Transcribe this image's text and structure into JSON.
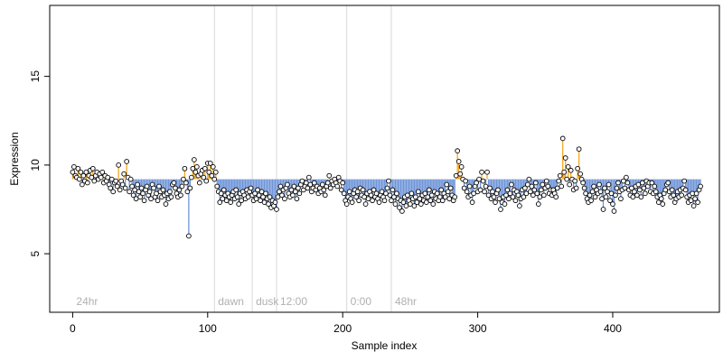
{
  "chart_data": {
    "type": "scatter",
    "xlabel": "Sample index",
    "ylabel": "Expression",
    "xlim": [
      -17,
      479
    ],
    "ylim": [
      1.7,
      19.0
    ],
    "x_ticks": [
      0,
      100,
      200,
      300,
      400
    ],
    "y_ticks": [
      5,
      10,
      15
    ],
    "baseline": 9.2,
    "baseline_x_range": [
      0,
      463
    ],
    "colors": {
      "above": "#f5a623",
      "below": "#6f95d8",
      "vline": "#d8d8d8",
      "point_edge": "#000000",
      "point_fill": "#ffffff"
    },
    "annotations": [
      {
        "label": "24hr",
        "x": 0
      },
      {
        "label": "dawn",
        "x": 105
      },
      {
        "label": "dusk",
        "x": 133
      },
      {
        "label": "12:00",
        "x": 151
      },
      {
        "label": "0:00",
        "x": 203
      },
      {
        "label": "48hr",
        "x": 236
      }
    ],
    "series": [
      {
        "values": [
          9.6,
          9.9,
          9.4,
          9.3,
          9.8,
          9.2,
          9.6,
          8.9,
          9.4,
          9.1,
          9.6,
          9.0,
          9.4,
          9.7,
          9.3,
          9.8,
          9.1,
          9.4,
          9.6,
          9.2,
          9.5,
          9.3,
          9.6,
          9.0,
          9.4,
          9.1,
          9.3,
          8.9,
          8.7,
          9.2,
          8.5,
          9.0,
          9.1,
          8.8,
          10.0,
          8.6,
          9.1,
          8.9,
          9.5,
          8.7,
          10.2,
          9.3,
          8.5,
          9.2,
          8.8,
          8.3,
          8.6,
          8.1,
          8.9,
          8.5,
          8.2,
          8.7,
          8.4,
          8.0,
          8.6,
          8.8,
          8.3,
          8.5,
          8.1,
          8.9,
          8.7,
          8.2,
          8.4,
          8.0,
          8.8,
          8.5,
          8.2,
          8.6,
          8.3,
          7.8,
          8.4,
          8.1,
          8.5,
          8.2,
          8.9,
          9.0,
          8.7,
          8.4,
          8.2,
          8.6,
          8.3,
          8.8,
          9.2,
          9.8,
          9.0,
          8.5,
          6.0,
          8.7,
          9.3,
          9.8,
          10.3,
          9.6,
          9.9,
          9.4,
          9.0,
          9.5,
          9.7,
          9.3,
          9.8,
          9.1,
          10.1,
          9.6,
          10.1,
          9.4,
          9.9,
          9.2,
          9.6,
          8.8,
          8.5,
          7.9,
          8.4,
          8.1,
          8.6,
          8.3,
          8.0,
          8.4,
          8.2,
          7.9,
          8.3,
          8.5,
          8.1,
          8.6,
          8.2,
          7.8,
          8.4,
          8.0,
          8.5,
          8.3,
          8.1,
          8.6,
          8.2,
          8.5,
          8.7,
          8.3,
          8.0,
          8.4,
          8.1,
          8.6,
          8.3,
          8.0,
          8.5,
          8.2,
          7.9,
          8.4,
          8.1,
          7.8,
          8.2,
          7.6,
          8.0,
          7.7,
          7.9,
          7.5,
          8.2,
          8.5,
          8.8,
          8.3,
          8.6,
          8.1,
          8.7,
          8.9,
          8.4,
          8.2,
          8.6,
          8.3,
          8.8,
          8.5,
          8.1,
          8.7,
          8.4,
          8.9,
          9.1,
          8.6,
          8.8,
          9.0,
          8.7,
          9.3,
          8.9,
          8.5,
          8.7,
          9.0,
          8.6,
          8.8,
          8.4,
          8.7,
          8.5,
          8.9,
          8.6,
          8.3,
          8.8,
          9.0,
          9.4,
          8.7,
          9.1,
          8.9,
          9.2,
          9.0,
          8.8,
          9.3,
          9.1,
          8.6,
          9.0,
          8.4,
          8.0,
          7.8,
          8.2,
          8.5,
          8.1,
          7.9,
          8.4,
          8.6,
          8.2,
          8.5,
          8.0,
          8.7,
          8.3,
          8.6,
          8.2,
          7.8,
          8.4,
          8.1,
          8.5,
          8.3,
          8.0,
          8.6,
          8.2,
          8.4,
          8.1,
          7.9,
          8.3,
          8.5,
          8.2,
          8.0,
          8.4,
          8.7,
          9.1,
          8.3,
          8.0,
          8.6,
          8.2,
          7.8,
          8.4,
          8.1,
          7.6,
          8.0,
          7.4,
          7.9,
          8.2,
          7.7,
          8.3,
          8.0,
          7.8,
          8.4,
          8.1,
          7.7,
          8.2,
          7.9,
          8.5,
          8.1,
          7.8,
          8.3,
          8.0,
          8.4,
          7.9,
          8.2,
          8.6,
          8.0,
          8.3,
          7.8,
          8.5,
          8.1,
          8.4,
          8.0,
          8.2,
          8.6,
          8.0,
          8.4,
          8.2,
          8.9,
          8.5,
          8.1,
          8.7,
          8.3,
          8.0,
          8.2,
          9.4,
          10.8,
          10.2,
          9.5,
          9.9,
          9.2,
          8.7,
          9.1,
          8.5,
          8.2,
          8.8,
          8.3,
          7.9,
          8.4,
          8.8,
          9.0,
          8.5,
          9.2,
          8.6,
          9.6,
          9.1,
          8.5,
          8.8,
          9.6,
          8.3,
          8.7,
          8.1,
          8.5,
          8.2,
          7.9,
          8.4,
          8.6,
          8.1,
          7.5,
          7.9,
          8.2,
          7.8,
          8.3,
          8.6,
          8.1,
          8.4,
          8.9,
          8.2,
          8.6,
          8.0,
          8.5,
          8.3,
          7.7,
          8.1,
          8.6,
          8.2,
          8.7,
          8.4,
          8.9,
          9.2,
          8.5,
          8.8,
          8.3,
          8.6,
          9.0,
          8.4,
          7.8,
          8.2,
          8.6,
          8.9,
          8.3,
          8.7,
          9.1,
          8.8,
          8.4,
          8.6,
          8.3,
          8.6,
          8.4,
          8.2,
          8.7,
          9.1,
          9.4,
          8.8,
          11.5,
          9.6,
          10.4,
          9.2,
          9.9,
          8.9,
          9.7,
          9.2,
          8.6,
          9.1,
          8.7,
          9.8,
          10.9,
          9.5,
          9.2,
          9.0,
          8.7,
          8.4,
          8.1,
          7.9,
          8.3,
          8.0,
          8.5,
          8.8,
          8.2,
          8.6,
          8.4,
          8.9,
          8.5,
          8.1,
          7.5,
          8.7,
          8.2,
          8.5,
          8.9,
          8.0,
          8.4,
          7.8,
          7.4,
          8.3,
          8.7,
          9.0,
          8.5,
          8.1,
          8.6,
          9.1,
          8.7,
          9.3,
          9.0,
          8.6,
          8.3,
          8.7,
          8.2,
          8.5,
          8.8,
          8.3,
          8.9,
          8.6,
          8.2,
          9.0,
          8.7,
          8.4,
          9.1,
          8.8,
          9.0,
          8.5,
          9.0,
          8.4,
          8.8,
          8.5,
          8.2,
          7.9,
          8.3,
          8.1,
          7.8,
          8.4,
          8.6,
          8.9,
          9.0,
          8.5,
          8.2,
          8.6,
          8.3,
          7.9,
          8.1,
          8.5,
          8.2,
          8.6,
          8.3,
          8.7,
          9.1,
          8.6,
          8.2,
          7.9,
          8.3,
          8.0,
          8.4,
          7.7,
          8.1,
          8.4,
          7.9,
          8.6,
          8.8
        ]
      }
    ]
  }
}
